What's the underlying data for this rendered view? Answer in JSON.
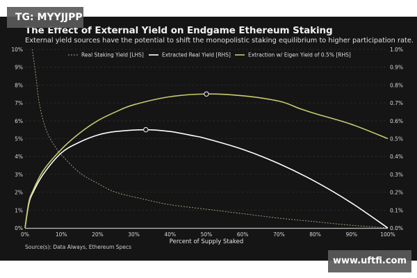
{
  "watermarks": {
    "top_left": "TG: MYYJJPP",
    "bottom_right": "www.uftfi.com"
  },
  "chart_data": {
    "type": "line",
    "title": "The Effect of External Yield on Endgame Ethereum Staking",
    "subtitle": "External yield sources have the potential to shift the monopolistic staking equilibrium to higher participation rate.",
    "xlabel": "Percent of Supply Staked",
    "ylabel_left": "",
    "ylabel_right": "",
    "source": "Source(s): Data Always, Ethereum Specs",
    "x_ticks": [
      "0%",
      "10%",
      "20%",
      "30%",
      "40%",
      "50%",
      "60%",
      "70%",
      "80%",
      "90%",
      "100%"
    ],
    "y_left_ticks": [
      "0%",
      "1%",
      "2%",
      "3%",
      "4%",
      "5%",
      "6%",
      "7%",
      "8%",
      "9%",
      "10%"
    ],
    "y_right_ticks": [
      "0.0%",
      "0.1%",
      "0.2%",
      "0.3%",
      "0.4%",
      "0.5%",
      "0.6%",
      "0.7%",
      "0.8%",
      "0.9%",
      "1.0%"
    ],
    "xlim": [
      0,
      100
    ],
    "ylim_left": [
      0,
      10
    ],
    "ylim_right": [
      0,
      1.0
    ],
    "grid": true,
    "legend_position": "top",
    "series": [
      {
        "name": "Real Staking Yield [LHS]",
        "axis": "left",
        "style": "dashed",
        "color": "#b8a888",
        "x": [
          2,
          3,
          4,
          6,
          8.8,
          10,
          15,
          20,
          25,
          33,
          40,
          50,
          60,
          70,
          80,
          90,
          100
        ],
        "values": [
          10,
          8.5,
          6.9,
          5.4,
          4.4,
          4.1,
          3.1,
          2.5,
          2.0,
          1.6,
          1.3,
          1.05,
          0.8,
          0.55,
          0.35,
          0.15,
          0.0
        ]
      },
      {
        "name": "Extracted Real Yield [RHS]",
        "axis": "right",
        "style": "solid",
        "color": "#ffffff",
        "x": [
          0,
          1,
          2,
          5,
          10,
          15,
          20,
          25,
          33.3,
          40,
          46.7,
          50,
          60,
          70,
          80,
          90,
          100
        ],
        "values": [
          0.0,
          0.13,
          0.19,
          0.3,
          0.42,
          0.48,
          0.52,
          0.54,
          0.55,
          0.54,
          0.515,
          0.5,
          0.44,
          0.36,
          0.26,
          0.14,
          0.0
        ],
        "marker": {
          "x": 33.3,
          "y": 0.55
        }
      },
      {
        "name": "Extraction w/ Eigen Yield of 0.5% [RHS]",
        "axis": "right",
        "style": "solid",
        "color": "#c9cc6e",
        "x": [
          0,
          1,
          2,
          5,
          10,
          15,
          20,
          25,
          30,
          40,
          50,
          60,
          70,
          75.5,
          80,
          90,
          100
        ],
        "values": [
          0.0,
          0.14,
          0.2,
          0.32,
          0.44,
          0.53,
          0.6,
          0.65,
          0.69,
          0.735,
          0.75,
          0.74,
          0.71,
          0.67,
          0.64,
          0.58,
          0.5
        ],
        "marker": {
          "x": 50,
          "y": 0.75
        }
      }
    ]
  }
}
